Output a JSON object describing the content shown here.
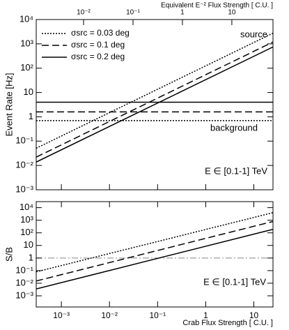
{
  "chart_data": [
    {
      "type": "line",
      "ylabel": "Event Rate [Hz]",
      "xscale": "log",
      "yscale": "log",
      "xlim": [
        0.0003,
        25
      ],
      "ylim": [
        0.001,
        10000
      ],
      "xticks": [
        {
          "value": 0.001,
          "label": "10⁻³"
        },
        {
          "value": 0.01,
          "label": "10⁻²"
        },
        {
          "value": 0.1,
          "label": "10⁻¹"
        },
        1,
        10
      ],
      "yticks": [
        {
          "value": 0.001,
          "label": "10⁻³"
        },
        {
          "value": 0.01,
          "label": "10⁻²"
        },
        {
          "value": 0.1,
          "label": "10⁻¹"
        },
        1,
        10,
        {
          "value": 100,
          "label": "10²"
        },
        {
          "value": 1000,
          "label": "10³"
        },
        {
          "value": 10000,
          "label": "10⁴"
        }
      ],
      "x2label": "Equivalent E⁻² Flux Strength [ C.U. ]",
      "x2lim": [
        0.0011,
        68
      ],
      "x2ticks": [
        {
          "value": 0.01,
          "label": "10⁻²"
        },
        {
          "value": 0.1,
          "label": "10⁻¹"
        },
        1,
        10
      ],
      "series": [
        {
          "name": "σsrc = 0.03 deg",
          "style": "dotted",
          "color": "#000000",
          "x": [
            0.0003,
            25
          ],
          "values": [
            0.051,
            2750
          ]
        },
        {
          "name": "σsrc = 0.1 deg",
          "style": "dashed",
          "color": "#000000",
          "x": [
            0.0003,
            25
          ],
          "values": [
            0.022,
            1190
          ]
        },
        {
          "name": "σsrc = 0.2 deg",
          "style": "solid",
          "color": "#000000",
          "x": [
            0.0003,
            25
          ],
          "values": [
            0.0138,
            745
          ]
        },
        {
          "style": "dotted",
          "color": "#000000",
          "x": [
            0.0003,
            25
          ],
          "values": [
            0.7,
            0.7
          ]
        },
        {
          "style": "dashed",
          "color": "#000000",
          "x": [
            0.0003,
            25
          ],
          "values": [
            1.6,
            1.6
          ]
        },
        {
          "style": "solid",
          "color": "#000000",
          "x": [
            0.0003,
            25
          ],
          "values": [
            4,
            4
          ]
        }
      ],
      "annotations": [
        "source",
        "background",
        "E ∈ [0.1-1] TeV"
      ],
      "legend": "upper left"
    },
    {
      "type": "line",
      "xlabel": "Crab Flux Strength [ C.U. ]",
      "ylabel": "S/B",
      "xscale": "log",
      "yscale": "log",
      "xlim": [
        0.0003,
        25
      ],
      "ylim": [
        0.00013,
        30000
      ],
      "xticks": [
        {
          "value": 0.001,
          "label": "10⁻³"
        },
        {
          "value": 0.01,
          "label": "10⁻²"
        },
        {
          "value": 0.1,
          "label": "10⁻¹"
        },
        1,
        10
      ],
      "yticks": [
        {
          "value": 0.001,
          "label": "10⁻³"
        },
        {
          "value": 0.01,
          "label": "10⁻²"
        },
        {
          "value": 0.1,
          "label": "10⁻¹"
        },
        1,
        10,
        {
          "value": 100,
          "label": "10²"
        },
        {
          "value": 1000,
          "label": "10³"
        },
        {
          "value": 10000,
          "label": "10⁴"
        }
      ],
      "series": [
        {
          "style": "dotted",
          "color": "#000000",
          "x": [
            0.0003,
            25
          ],
          "values": [
            0.08,
            4000
          ]
        },
        {
          "style": "dashed",
          "color": "#000000",
          "x": [
            0.0003,
            25
          ],
          "values": [
            0.015,
            800
          ]
        },
        {
          "style": "solid",
          "color": "#000000",
          "x": [
            0.0003,
            25
          ],
          "values": [
            0.0035,
            190
          ]
        }
      ],
      "hline": {
        "value": 1,
        "color": "#888888",
        "style": "dashdot"
      },
      "annotations": [
        "E ∈ [0.1-1] TeV"
      ]
    }
  ]
}
